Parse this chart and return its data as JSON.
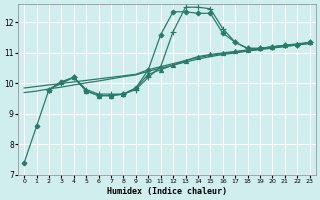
{
  "xlabel": "Humidex (Indice chaleur)",
  "bg_color": "#d0eeee",
  "grid_color": "#ffffff",
  "line_color": "#2a7a6a",
  "xlim": [
    -0.5,
    23.5
  ],
  "ylim": [
    7,
    12.6
  ],
  "xticks": [
    0,
    1,
    2,
    3,
    4,
    5,
    6,
    7,
    8,
    9,
    10,
    11,
    12,
    13,
    14,
    15,
    16,
    17,
    18,
    19,
    20,
    21,
    22,
    23
  ],
  "yticks": [
    7,
    8,
    9,
    10,
    11,
    12
  ],
  "lines": [
    {
      "x": [
        0,
        1,
        2,
        3,
        4,
        5,
        6,
        7,
        8,
        9,
        10,
        11,
        12,
        13,
        14,
        15,
        16,
        17,
        18,
        19,
        20,
        21,
        22,
        23
      ],
      "y": [
        7.4,
        8.6,
        9.8,
        10.05,
        10.2,
        9.75,
        9.6,
        9.6,
        9.65,
        9.85,
        10.45,
        11.6,
        12.35,
        12.35,
        12.3,
        12.3,
        11.65,
        11.35,
        11.15,
        11.15,
        11.2,
        11.25,
        11.25,
        11.35
      ],
      "marker": "D",
      "markersize": 2.5,
      "lw": 0.9
    },
    {
      "x": [
        0,
        1,
        2,
        3,
        4,
        5,
        6,
        7,
        8,
        9,
        10,
        11,
        12,
        13,
        14,
        15,
        16,
        17,
        18,
        19,
        20,
        21,
        22,
        23
      ],
      "y": [
        9.85,
        9.9,
        9.95,
        10.0,
        10.05,
        10.1,
        10.15,
        10.2,
        10.25,
        10.3,
        10.45,
        10.55,
        10.65,
        10.75,
        10.85,
        10.92,
        10.98,
        11.03,
        11.08,
        11.13,
        11.18,
        11.22,
        11.27,
        11.32
      ],
      "marker": null,
      "markersize": 0,
      "lw": 0.9
    },
    {
      "x": [
        0,
        1,
        2,
        3,
        4,
        5,
        6,
        7,
        8,
        9,
        10,
        11,
        12,
        13,
        14,
        15,
        16,
        17,
        18,
        19,
        20,
        21,
        22,
        23
      ],
      "y": [
        9.7,
        9.75,
        9.82,
        9.88,
        9.95,
        10.02,
        10.08,
        10.15,
        10.22,
        10.28,
        10.4,
        10.5,
        10.6,
        10.7,
        10.8,
        10.88,
        10.95,
        11.0,
        11.06,
        11.11,
        11.16,
        11.21,
        11.26,
        11.31
      ],
      "marker": null,
      "markersize": 0,
      "lw": 0.9
    },
    {
      "x": [
        2,
        3,
        4,
        5,
        6,
        7,
        8,
        9,
        10,
        11,
        12,
        13,
        14,
        15,
        16,
        17,
        18,
        19,
        20,
        21,
        22,
        23
      ],
      "y": [
        9.8,
        10.05,
        10.2,
        9.75,
        9.6,
        9.6,
        9.65,
        9.85,
        10.3,
        10.45,
        10.6,
        10.75,
        10.88,
        10.95,
        11.0,
        11.05,
        11.1,
        11.15,
        11.2,
        11.25,
        11.3,
        11.35
      ],
      "marker": "^",
      "markersize": 3,
      "lw": 0.9
    },
    {
      "x": [
        2,
        3,
        4,
        5,
        6,
        7,
        8,
        9,
        10,
        11,
        12,
        13,
        14,
        15,
        16,
        17,
        18,
        19,
        20,
        21,
        22,
        23
      ],
      "y": [
        9.8,
        10.0,
        10.2,
        9.8,
        9.65,
        9.65,
        9.65,
        9.8,
        10.2,
        10.55,
        11.7,
        12.5,
        12.5,
        12.45,
        11.8,
        11.35,
        11.15,
        11.15,
        11.2,
        11.25,
        11.25,
        11.35
      ],
      "marker": "+",
      "markersize": 4,
      "lw": 0.9
    }
  ]
}
